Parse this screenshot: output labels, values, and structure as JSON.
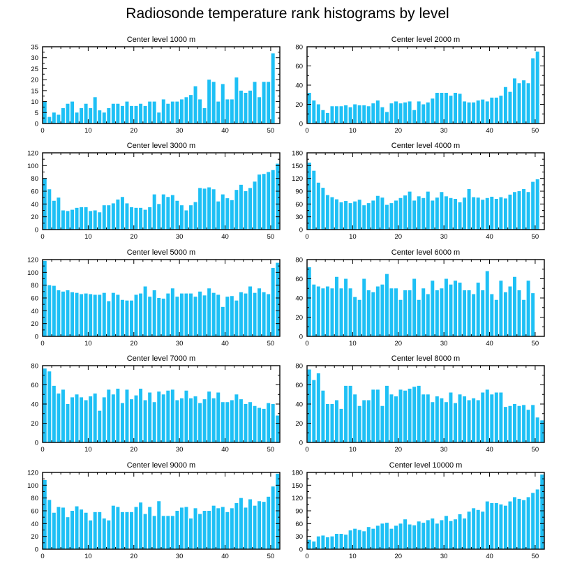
{
  "figure_title": "Radiosonde temperature rank histograms by level",
  "bar_color": "#1ec0f5",
  "chart_data": [
    {
      "type": "bar",
      "title": "Center level 1000 m",
      "xlim": [
        0,
        52
      ],
      "ylim": [
        0,
        35
      ],
      "xticks": [
        0,
        10,
        20,
        30,
        40,
        50
      ],
      "yticks": [
        0,
        5,
        10,
        15,
        20,
        25,
        30,
        35
      ],
      "x": [
        0,
        1,
        2,
        3,
        4,
        5,
        6,
        7,
        8,
        9,
        10,
        11,
        12,
        13,
        14,
        15,
        16,
        17,
        18,
        19,
        20,
        21,
        22,
        23,
        24,
        25,
        26,
        27,
        28,
        29,
        30,
        31,
        32,
        33,
        34,
        35,
        36,
        37,
        38,
        39,
        40,
        41,
        42,
        43,
        44,
        45,
        46,
        47,
        48,
        49,
        50,
        51
      ],
      "values": [
        10,
        3,
        5,
        4,
        7,
        9,
        10,
        5,
        7,
        9,
        7,
        12,
        6,
        5,
        7,
        9,
        9,
        8,
        10,
        8,
        8,
        9,
        8,
        10,
        10,
        5,
        11,
        9,
        10,
        10,
        11,
        12,
        13,
        17,
        11,
        7,
        20,
        19,
        10,
        18,
        11,
        11,
        21,
        15,
        14,
        15,
        19,
        12,
        19,
        19,
        32,
        0
      ]
    },
    {
      "type": "bar",
      "title": "Center level 2000 m",
      "xlim": [
        0,
        52
      ],
      "ylim": [
        0,
        80
      ],
      "xticks": [
        0,
        10,
        20,
        30,
        40,
        50
      ],
      "yticks": [
        0,
        20,
        40,
        60,
        80
      ],
      "x": [
        0,
        1,
        2,
        3,
        4,
        5,
        6,
        7,
        8,
        9,
        10,
        11,
        12,
        13,
        14,
        15,
        16,
        17,
        18,
        19,
        20,
        21,
        22,
        23,
        24,
        25,
        26,
        27,
        28,
        29,
        30,
        31,
        32,
        33,
        34,
        35,
        36,
        37,
        38,
        39,
        40,
        41,
        42,
        43,
        44,
        45,
        46,
        47,
        48,
        49,
        50,
        51
      ],
      "values": [
        32,
        24,
        20,
        14,
        11,
        18,
        18,
        18,
        19,
        17,
        20,
        19,
        19,
        18,
        21,
        24,
        17,
        12,
        21,
        23,
        21,
        22,
        23,
        14,
        23,
        20,
        22,
        26,
        32,
        32,
        32,
        29,
        32,
        31,
        23,
        22,
        22,
        24,
        25,
        23,
        27,
        27,
        29,
        38,
        33,
        47,
        42,
        45,
        42,
        68,
        75,
        0
      ]
    },
    {
      "type": "bar",
      "title": "Center level 3000 m",
      "xlim": [
        0,
        52
      ],
      "ylim": [
        0,
        120
      ],
      "xticks": [
        0,
        10,
        20,
        30,
        40,
        50
      ],
      "yticks": [
        0,
        20,
        40,
        60,
        80,
        100,
        120
      ],
      "x": [
        0,
        1,
        2,
        3,
        4,
        5,
        6,
        7,
        8,
        9,
        10,
        11,
        12,
        13,
        14,
        15,
        16,
        17,
        18,
        19,
        20,
        21,
        22,
        23,
        24,
        25,
        26,
        27,
        28,
        29,
        30,
        31,
        32,
        33,
        34,
        35,
        36,
        37,
        38,
        39,
        40,
        41,
        42,
        43,
        44,
        45,
        46,
        47,
        48,
        49,
        50,
        51
      ],
      "values": [
        80,
        63,
        45,
        50,
        30,
        29,
        31,
        34,
        35,
        35,
        29,
        30,
        27,
        38,
        38,
        41,
        47,
        51,
        41,
        35,
        34,
        34,
        31,
        35,
        55,
        40,
        55,
        51,
        54,
        45,
        38,
        30,
        38,
        43,
        65,
        64,
        66,
        63,
        44,
        55,
        49,
        46,
        62,
        70,
        60,
        65,
        75,
        86,
        87,
        90,
        93,
        103
      ]
    },
    {
      "type": "bar",
      "title": "Center level 4000 m",
      "xlim": [
        0,
        52
      ],
      "ylim": [
        0,
        180
      ],
      "xticks": [
        0,
        10,
        20,
        30,
        40,
        50
      ],
      "yticks": [
        0,
        30,
        60,
        90,
        120,
        150,
        180
      ],
      "x": [
        0,
        1,
        2,
        3,
        4,
        5,
        6,
        7,
        8,
        9,
        10,
        11,
        12,
        13,
        14,
        15,
        16,
        17,
        18,
        19,
        20,
        21,
        22,
        23,
        24,
        25,
        26,
        27,
        28,
        29,
        30,
        31,
        32,
        33,
        34,
        35,
        36,
        37,
        38,
        39,
        40,
        41,
        42,
        43,
        44,
        45,
        46,
        47,
        48,
        49,
        50,
        51
      ],
      "values": [
        157,
        138,
        110,
        98,
        81,
        76,
        71,
        64,
        67,
        62,
        66,
        70,
        57,
        62,
        68,
        79,
        75,
        58,
        62,
        68,
        74,
        80,
        89,
        68,
        78,
        74,
        89,
        68,
        75,
        88,
        78,
        74,
        72,
        64,
        75,
        95,
        76,
        75,
        70,
        74,
        77,
        72,
        76,
        73,
        82,
        88,
        90,
        95,
        88,
        112,
        118,
        0
      ]
    },
    {
      "type": "bar",
      "title": "Center level 5000 m",
      "xlim": [
        0,
        52
      ],
      "ylim": [
        0,
        120
      ],
      "xticks": [
        0,
        10,
        20,
        30,
        40,
        50
      ],
      "yticks": [
        0,
        20,
        40,
        60,
        80,
        100,
        120
      ],
      "x": [
        0,
        1,
        2,
        3,
        4,
        5,
        6,
        7,
        8,
        9,
        10,
        11,
        12,
        13,
        14,
        15,
        16,
        17,
        18,
        19,
        20,
        21,
        22,
        23,
        24,
        25,
        26,
        27,
        28,
        29,
        30,
        31,
        32,
        33,
        34,
        35,
        36,
        37,
        38,
        39,
        40,
        41,
        42,
        43,
        44,
        45,
        46,
        47,
        48,
        49,
        50,
        51
      ],
      "values": [
        118,
        80,
        79,
        72,
        70,
        72,
        69,
        68,
        66,
        67,
        66,
        65,
        65,
        68,
        55,
        68,
        65,
        57,
        56,
        56,
        65,
        67,
        78,
        62,
        72,
        60,
        59,
        67,
        75,
        62,
        67,
        67,
        67,
        62,
        70,
        64,
        75,
        68,
        65,
        46,
        62,
        63,
        56,
        69,
        67,
        78,
        68,
        75,
        69,
        66,
        107,
        115
      ]
    },
    {
      "type": "bar",
      "title": "Center level 6000 m",
      "xlim": [
        0,
        52
      ],
      "ylim": [
        0,
        80
      ],
      "xticks": [
        0,
        10,
        20,
        30,
        40,
        50
      ],
      "yticks": [
        0,
        20,
        40,
        60,
        80
      ],
      "x": [
        0,
        1,
        2,
        3,
        4,
        5,
        6,
        7,
        8,
        9,
        10,
        11,
        12,
        13,
        14,
        15,
        16,
        17,
        18,
        19,
        20,
        21,
        22,
        23,
        24,
        25,
        26,
        27,
        28,
        29,
        30,
        31,
        32,
        33,
        34,
        35,
        36,
        37,
        38,
        39,
        40,
        41,
        42,
        43,
        44,
        45,
        46,
        47,
        48,
        49,
        50,
        51
      ],
      "values": [
        72,
        54,
        52,
        50,
        52,
        50,
        62,
        50,
        60,
        50,
        41,
        38,
        60,
        48,
        46,
        52,
        54,
        65,
        50,
        50,
        38,
        48,
        48,
        60,
        38,
        50,
        44,
        58,
        48,
        50,
        60,
        54,
        58,
        56,
        48,
        48,
        44,
        56,
        48,
        68,
        44,
        38,
        58,
        46,
        52,
        62,
        48,
        38,
        58,
        45,
        0,
        0
      ]
    },
    {
      "type": "bar",
      "title": "Center level 7000 m",
      "xlim": [
        0,
        52
      ],
      "ylim": [
        0,
        80
      ],
      "xticks": [
        0,
        10,
        20,
        30,
        40,
        50
      ],
      "yticks": [
        0,
        20,
        40,
        60,
        80
      ],
      "x": [
        0,
        1,
        2,
        3,
        4,
        5,
        6,
        7,
        8,
        9,
        10,
        11,
        12,
        13,
        14,
        15,
        16,
        17,
        18,
        19,
        20,
        21,
        22,
        23,
        24,
        25,
        26,
        27,
        28,
        29,
        30,
        31,
        32,
        33,
        34,
        35,
        36,
        37,
        38,
        39,
        40,
        41,
        42,
        43,
        44,
        45,
        46,
        47,
        48,
        49,
        50,
        51
      ],
      "values": [
        77,
        74,
        59,
        51,
        55,
        40,
        47,
        50,
        47,
        44,
        48,
        51,
        33,
        47,
        55,
        50,
        56,
        41,
        55,
        45,
        49,
        56,
        44,
        52,
        42,
        53,
        50,
        54,
        55,
        44,
        46,
        54,
        46,
        48,
        41,
        45,
        53,
        46,
        52,
        42,
        42,
        44,
        50,
        45,
        40,
        42,
        38,
        36,
        35,
        41,
        40,
        28
      ]
    },
    {
      "type": "bar",
      "title": "Center level 8000 m",
      "xlim": [
        0,
        52
      ],
      "ylim": [
        0,
        80
      ],
      "xticks": [
        0,
        10,
        20,
        30,
        40,
        50
      ],
      "yticks": [
        0,
        20,
        40,
        60,
        80
      ],
      "x": [
        0,
        1,
        2,
        3,
        4,
        5,
        6,
        7,
        8,
        9,
        10,
        11,
        12,
        13,
        14,
        15,
        16,
        17,
        18,
        19,
        20,
        21,
        22,
        23,
        24,
        25,
        26,
        27,
        28,
        29,
        30,
        31,
        32,
        33,
        34,
        35,
        36,
        37,
        38,
        39,
        40,
        41,
        42,
        43,
        44,
        45,
        46,
        47,
        48,
        49,
        50,
        51
      ],
      "values": [
        76,
        65,
        72,
        54,
        40,
        40,
        44,
        35,
        59,
        59,
        50,
        38,
        44,
        44,
        55,
        55,
        38,
        59,
        50,
        48,
        55,
        54,
        56,
        58,
        59,
        50,
        50,
        42,
        48,
        46,
        42,
        52,
        41,
        50,
        48,
        44,
        46,
        44,
        52,
        55,
        50,
        52,
        52,
        37,
        38,
        40,
        38,
        39,
        34,
        39,
        26,
        23
      ]
    },
    {
      "type": "bar",
      "title": "Center level 9000 m",
      "xlim": [
        0,
        52
      ],
      "ylim": [
        0,
        120
      ],
      "xticks": [
        0,
        10,
        20,
        30,
        40,
        50
      ],
      "yticks": [
        0,
        20,
        40,
        60,
        80,
        100,
        120
      ],
      "x": [
        0,
        1,
        2,
        3,
        4,
        5,
        6,
        7,
        8,
        9,
        10,
        11,
        12,
        13,
        14,
        15,
        16,
        17,
        18,
        19,
        20,
        21,
        22,
        23,
        24,
        25,
        26,
        27,
        28,
        29,
        30,
        31,
        32,
        33,
        34,
        35,
        36,
        37,
        38,
        39,
        40,
        41,
        42,
        43,
        44,
        45,
        46,
        47,
        48,
        49,
        50,
        51
      ],
      "values": [
        108,
        77,
        57,
        66,
        65,
        50,
        60,
        67,
        62,
        57,
        45,
        58,
        58,
        48,
        45,
        68,
        66,
        58,
        58,
        58,
        66,
        73,
        55,
        66,
        52,
        75,
        52,
        52,
        52,
        60,
        65,
        66,
        48,
        64,
        55,
        60,
        60,
        68,
        64,
        66,
        58,
        64,
        72,
        80,
        65,
        78,
        68,
        75,
        74,
        82,
        98,
        118
      ]
    },
    {
      "type": "bar",
      "title": "Center level 10000 m",
      "xlim": [
        0,
        52
      ],
      "ylim": [
        0,
        180
      ],
      "xticks": [
        0,
        10,
        20,
        30,
        40,
        50
      ],
      "yticks": [
        0,
        30,
        60,
        90,
        120,
        150,
        180
      ],
      "x": [
        0,
        1,
        2,
        3,
        4,
        5,
        6,
        7,
        8,
        9,
        10,
        11,
        12,
        13,
        14,
        15,
        16,
        17,
        18,
        19,
        20,
        21,
        22,
        23,
        24,
        25,
        26,
        27,
        28,
        29,
        30,
        31,
        32,
        33,
        34,
        35,
        36,
        37,
        38,
        39,
        40,
        41,
        42,
        43,
        44,
        45,
        46,
        47,
        48,
        49,
        50,
        51
      ],
      "values": [
        22,
        18,
        30,
        32,
        28,
        30,
        36,
        36,
        34,
        44,
        48,
        45,
        42,
        52,
        48,
        55,
        60,
        62,
        48,
        55,
        60,
        70,
        58,
        56,
        65,
        62,
        68,
        72,
        60,
        68,
        78,
        66,
        70,
        82,
        72,
        88,
        96,
        92,
        88,
        112,
        108,
        108,
        105,
        102,
        112,
        122,
        118,
        115,
        122,
        132,
        140,
        175
      ]
    }
  ]
}
